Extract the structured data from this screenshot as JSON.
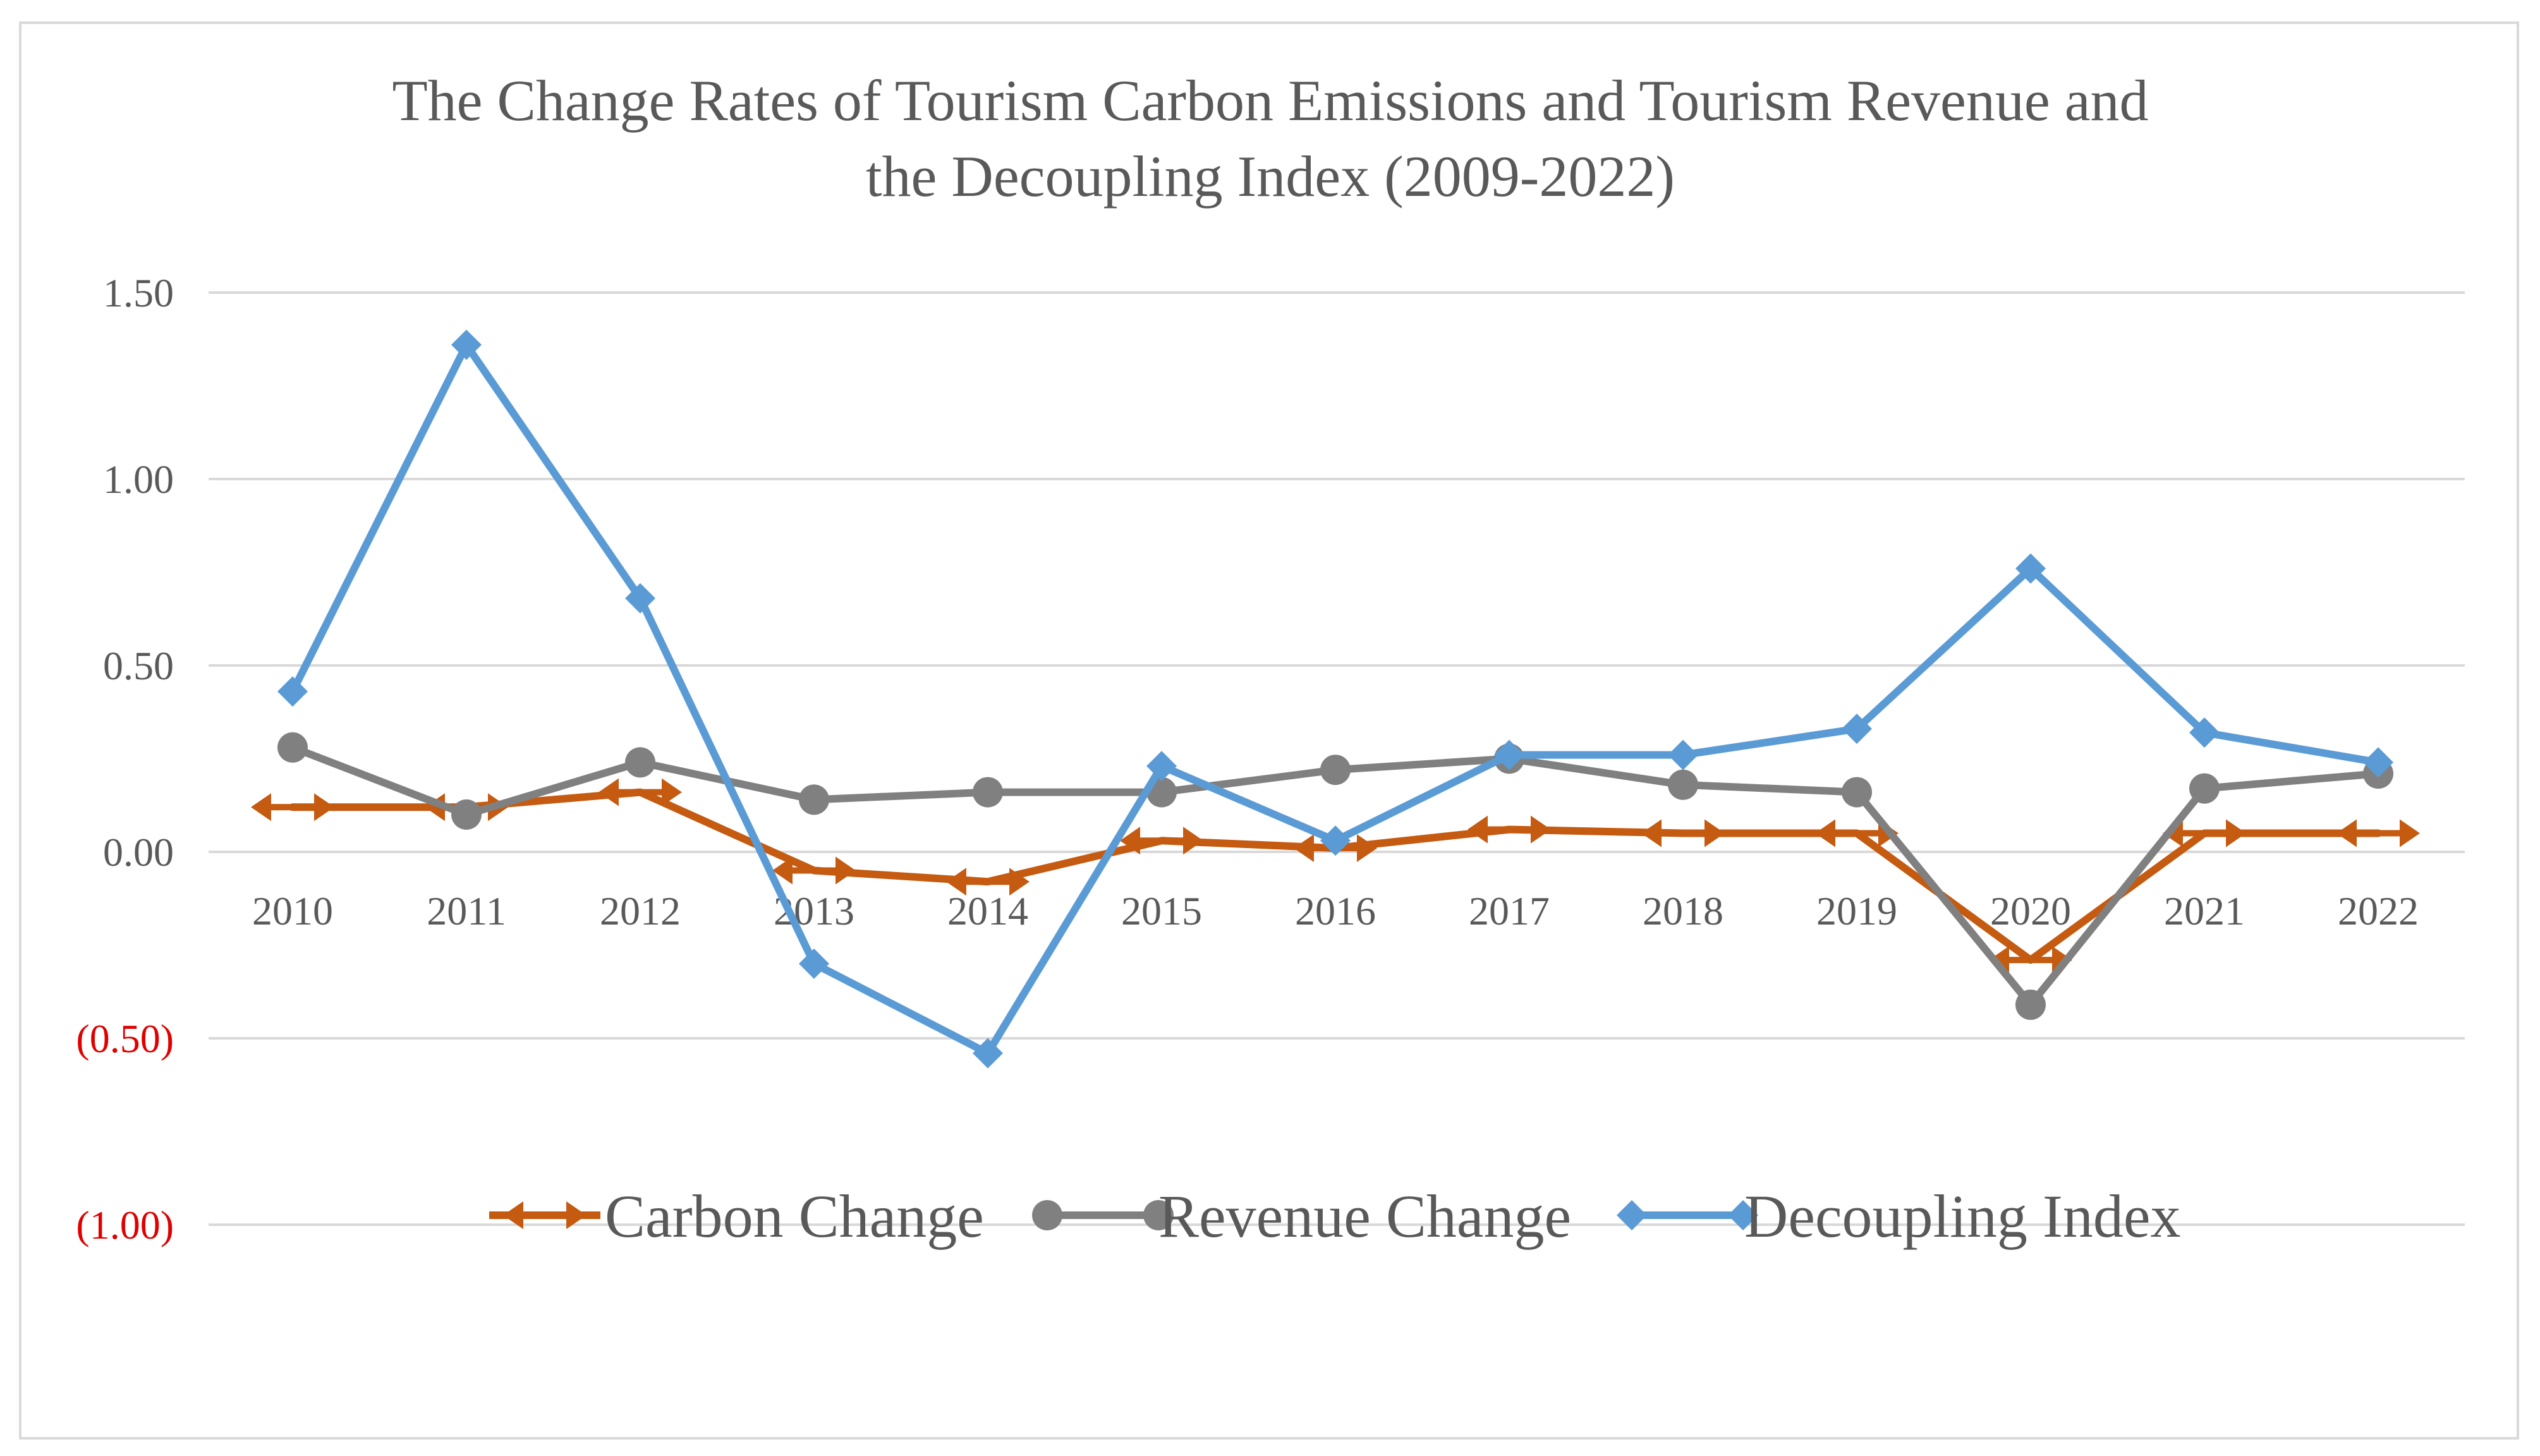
{
  "chart_data": {
    "type": "line",
    "title_lines": [
      "The Change Rates of Tourism Carbon Emissions and Tourism Revenue and",
      "the Decoupling Index (2009-2022)"
    ],
    "categories": [
      "2010",
      "2011",
      "2012",
      "2013",
      "2014",
      "2015",
      "2016",
      "2017",
      "2018",
      "2019",
      "2020",
      "2021",
      "2022"
    ],
    "ylim": [
      -1.0,
      1.5
    ],
    "yticks": [
      1.5,
      1.0,
      0.5,
      0.0,
      -0.5,
      -1.0
    ],
    "ytick_labels": [
      "1.50",
      "1.00",
      "0.50",
      "0.00",
      "(0.50)",
      "(1.00)"
    ],
    "negative_label_color": "#e00000",
    "grid": true,
    "legend_position": "inside-lower-center",
    "series": [
      {
        "name": "Carbon Change",
        "color": "#c55a11",
        "marker": "double-arrow",
        "values": [
          0.12,
          0.12,
          0.16,
          -0.05,
          -0.08,
          0.03,
          0.01,
          0.06,
          0.05,
          0.05,
          -0.29,
          0.05,
          0.05
        ]
      },
      {
        "name": "Revenue Change",
        "color": "#808080",
        "marker": "circle",
        "values": [
          0.28,
          0.1,
          0.24,
          0.14,
          0.16,
          0.16,
          0.22,
          0.25,
          0.18,
          0.16,
          -0.41,
          0.17,
          0.21
        ]
      },
      {
        "name": "Decoupling Index",
        "color": "#5b9bd5",
        "marker": "diamond",
        "values": [
          0.43,
          1.36,
          0.68,
          -0.3,
          -0.54,
          0.23,
          0.03,
          0.26,
          0.26,
          0.33,
          0.76,
          0.32,
          0.24
        ]
      }
    ]
  }
}
